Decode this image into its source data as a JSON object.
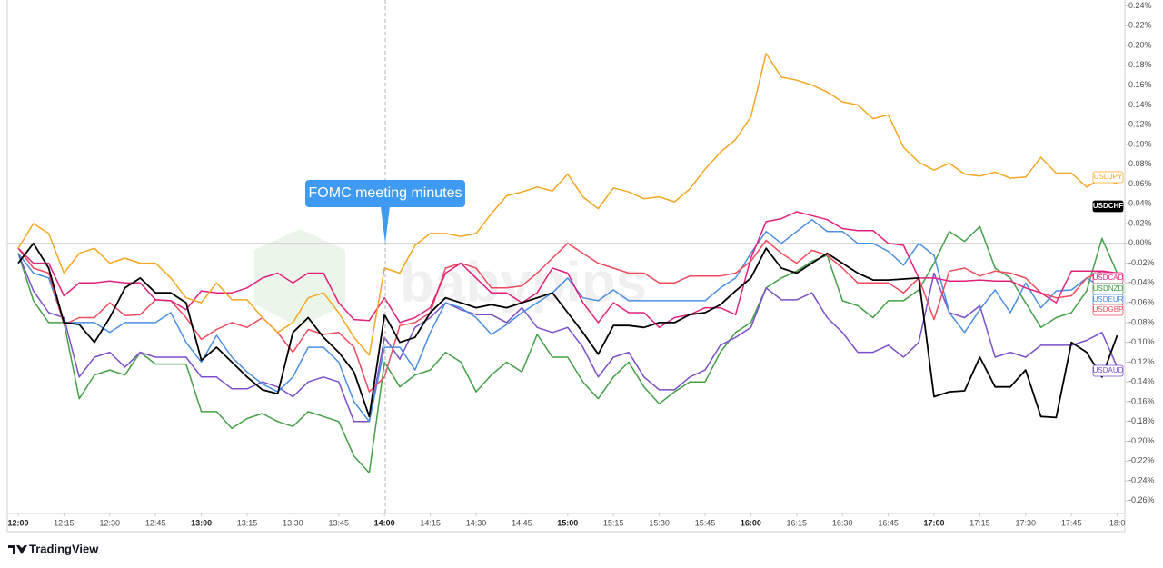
{
  "chart_data": {
    "type": "line",
    "annotation": "FOMC meeting minutes",
    "watermark": "babypips",
    "brand": "TradingView",
    "categories": [
      "12:00",
      null,
      null,
      "12:15",
      null,
      null,
      "12:30",
      null,
      null,
      "12:45",
      null,
      null,
      "13:00",
      null,
      null,
      "13:15",
      null,
      null,
      "13:30",
      null,
      null,
      "13:45",
      null,
      null,
      "14:00",
      null,
      null,
      "14:15",
      null,
      null,
      "14:30",
      null,
      null,
      "14:45",
      null,
      null,
      "15:00",
      null,
      null,
      "15:15",
      null,
      null,
      "15:30",
      null,
      null,
      "15:45",
      null,
      null,
      "16:00",
      null,
      null,
      "16:15",
      null,
      null,
      "16:30",
      null,
      null,
      "16:45",
      null,
      null,
      "17:00",
      null,
      null,
      "17:15",
      null,
      null,
      "17:30",
      null,
      null,
      "17:45",
      null,
      null,
      "18:0"
    ],
    "ylim": [
      -0.273,
      0.246
    ],
    "yticks": [
      {
        "value": 0.24,
        "label": "0.24%"
      },
      {
        "value": 0.22,
        "label": "0.22%"
      },
      {
        "value": 0.2,
        "label": "0.20%"
      },
      {
        "value": 0.18,
        "label": "0.18%"
      },
      {
        "value": 0.16,
        "label": "0.16%"
      },
      {
        "value": 0.14,
        "label": "0.14%"
      },
      {
        "value": 0.12,
        "label": "0.12%"
      },
      {
        "value": 0.1,
        "label": "0.10%"
      },
      {
        "value": 0.08,
        "label": "0.08%"
      },
      {
        "value": 0.06,
        "label": "0.06%"
      },
      {
        "value": 0.04,
        "label": "0.04%"
      },
      {
        "value": 0.02,
        "label": "0.02%"
      },
      {
        "value": 0,
        "label": "0.00%"
      },
      {
        "value": -0.02,
        "label": "-0.02%"
      },
      {
        "value": -0.04,
        "label": "-0.04%"
      },
      {
        "value": -0.06,
        "label": "-0.06%"
      },
      {
        "value": -0.08,
        "label": "-0.08%"
      },
      {
        "value": -0.1,
        "label": "-0.10%"
      },
      {
        "value": -0.12,
        "label": "-0.12%"
      },
      {
        "value": -0.14,
        "label": "-0.14%"
      },
      {
        "value": -0.16,
        "label": "-0.16%"
      },
      {
        "value": -0.18,
        "label": "-0.18%"
      },
      {
        "value": -0.2,
        "label": "-0.20%"
      },
      {
        "value": -0.22,
        "label": "-0.22%"
      },
      {
        "value": -0.24,
        "label": "-0.24%"
      },
      {
        "value": -0.26,
        "label": "-0.26%"
      }
    ],
    "grid": false,
    "series": [
      {
        "name": "USDJPY",
        "color": "#f5a623",
        "values": [
          -0.005,
          0.02,
          0.01,
          -0.03,
          -0.01,
          -0.005,
          -0.02,
          -0.015,
          -0.02,
          -0.02,
          -0.035,
          -0.055,
          -0.06,
          -0.04,
          -0.057,
          -0.057,
          -0.075,
          -0.09,
          -0.08,
          -0.055,
          -0.05,
          -0.07,
          -0.095,
          -0.113,
          -0.025,
          -0.03,
          -0.002,
          0.01,
          0.01,
          0.007,
          0.01,
          0.03,
          0.048,
          0.052,
          0.057,
          0.053,
          0.07,
          0.047,
          0.035,
          0.056,
          0.052,
          0.045,
          0.047,
          0.042,
          0.055,
          0.075,
          0.092,
          0.105,
          0.128,
          0.192,
          0.168,
          0.165,
          0.16,
          0.153,
          0.143,
          0.14,
          0.126,
          0.13,
          0.097,
          0.082,
          0.074,
          0.081,
          0.07,
          0.068,
          0.072,
          0.066,
          0.067,
          0.087,
          0.071,
          0.071,
          0.057,
          0.066,
          0.06
        ]
      },
      {
        "name": "USDCHF",
        "color": "#000000",
        "values": [
          -0.02,
          0.0,
          -0.025,
          -0.08,
          -0.082,
          -0.1,
          -0.075,
          -0.045,
          -0.035,
          -0.05,
          -0.05,
          -0.06,
          -0.118,
          -0.105,
          -0.12,
          -0.135,
          -0.148,
          -0.152,
          -0.09,
          -0.075,
          -0.095,
          -0.11,
          -0.13,
          -0.175,
          -0.072,
          -0.1,
          -0.095,
          -0.07,
          -0.055,
          -0.06,
          -0.065,
          -0.062,
          -0.065,
          -0.06,
          -0.055,
          -0.05,
          -0.07,
          -0.09,
          -0.112,
          -0.083,
          -0.083,
          -0.085,
          -0.08,
          -0.08,
          -0.072,
          -0.07,
          -0.062,
          -0.048,
          -0.035,
          -0.005,
          -0.025,
          -0.03,
          -0.02,
          -0.01,
          -0.02,
          -0.03,
          -0.037,
          -0.037,
          -0.036,
          -0.035,
          -0.155,
          -0.15,
          -0.149,
          -0.115,
          -0.145,
          -0.145,
          -0.128,
          -0.175,
          -0.176,
          -0.1,
          -0.11,
          -0.135,
          -0.093
        ]
      },
      {
        "name": "USDCAD",
        "color": "#e0217b",
        "values": [
          -0.005,
          -0.02,
          -0.02,
          -0.053,
          -0.04,
          -0.04,
          -0.038,
          -0.04,
          -0.04,
          -0.057,
          -0.058,
          -0.067,
          -0.048,
          -0.05,
          -0.05,
          -0.045,
          -0.035,
          -0.03,
          -0.04,
          -0.03,
          -0.03,
          -0.06,
          -0.077,
          -0.078,
          -0.055,
          -0.08,
          -0.075,
          -0.065,
          -0.03,
          -0.02,
          -0.035,
          -0.05,
          -0.05,
          -0.06,
          -0.05,
          -0.025,
          -0.03,
          -0.06,
          -0.08,
          -0.06,
          -0.07,
          -0.07,
          -0.085,
          -0.075,
          -0.072,
          -0.065,
          -0.065,
          -0.072,
          -0.015,
          0.022,
          0.025,
          0.032,
          0.028,
          0.024,
          0.015,
          0.013,
          0.013,
          0.0,
          -0.002,
          -0.035,
          -0.035,
          -0.038,
          -0.038,
          -0.037,
          -0.038,
          -0.038,
          -0.045,
          -0.05,
          -0.06,
          -0.028,
          -0.028,
          -0.028,
          -0.03
        ]
      },
      {
        "name": "USDNZD",
        "color": "#43a047",
        "values": [
          -0.01,
          -0.058,
          -0.08,
          -0.08,
          -0.157,
          -0.133,
          -0.128,
          -0.133,
          -0.11,
          -0.122,
          -0.122,
          -0.122,
          -0.17,
          -0.17,
          -0.187,
          -0.177,
          -0.172,
          -0.18,
          -0.185,
          -0.17,
          -0.175,
          -0.18,
          -0.215,
          -0.232,
          -0.12,
          -0.145,
          -0.133,
          -0.128,
          -0.11,
          -0.12,
          -0.15,
          -0.133,
          -0.12,
          -0.13,
          -0.092,
          -0.115,
          -0.115,
          -0.14,
          -0.157,
          -0.135,
          -0.12,
          -0.145,
          -0.162,
          -0.15,
          -0.14,
          -0.14,
          -0.11,
          -0.09,
          -0.08,
          -0.045,
          -0.035,
          -0.028,
          -0.018,
          -0.012,
          -0.058,
          -0.063,
          -0.075,
          -0.058,
          -0.058,
          -0.047,
          -0.02,
          0.012,
          0.002,
          0.017,
          -0.025,
          -0.035,
          -0.06,
          -0.085,
          -0.075,
          -0.07,
          -0.048,
          0.005,
          -0.03
        ]
      },
      {
        "name": "USDEUR",
        "color": "#4a8fe0",
        "values": [
          -0.01,
          -0.03,
          -0.035,
          -0.08,
          -0.08,
          -0.08,
          -0.09,
          -0.08,
          -0.08,
          -0.08,
          -0.07,
          -0.1,
          -0.12,
          -0.093,
          -0.115,
          -0.13,
          -0.142,
          -0.15,
          -0.135,
          -0.105,
          -0.105,
          -0.12,
          -0.16,
          -0.18,
          -0.105,
          -0.105,
          -0.128,
          -0.09,
          -0.06,
          -0.065,
          -0.075,
          -0.092,
          -0.082,
          -0.07,
          -0.06,
          -0.05,
          -0.035,
          -0.055,
          -0.058,
          -0.047,
          -0.058,
          -0.058,
          -0.058,
          -0.058,
          -0.058,
          -0.058,
          -0.045,
          -0.035,
          -0.01,
          0.012,
          0.0,
          0.012,
          0.024,
          0.012,
          0.012,
          0.0,
          0.0,
          -0.008,
          -0.022,
          0.0,
          -0.012,
          -0.07,
          -0.09,
          -0.067,
          -0.047,
          -0.07,
          -0.04,
          -0.065,
          -0.048,
          -0.047,
          -0.035,
          -0.045,
          -0.035
        ]
      },
      {
        "name": "USDGBP",
        "color": "#ef4b5e",
        "values": [
          -0.005,
          -0.025,
          -0.03,
          -0.082,
          -0.075,
          -0.075,
          -0.06,
          -0.073,
          -0.072,
          -0.057,
          -0.058,
          -0.075,
          -0.097,
          -0.087,
          -0.08,
          -0.085,
          -0.075,
          -0.09,
          -0.11,
          -0.087,
          -0.092,
          -0.09,
          -0.105,
          -0.15,
          -0.135,
          -0.083,
          -0.08,
          -0.07,
          -0.025,
          -0.02,
          -0.025,
          -0.045,
          -0.045,
          -0.043,
          -0.03,
          -0.015,
          0.0,
          -0.01,
          -0.02,
          -0.025,
          -0.03,
          -0.03,
          -0.04,
          -0.04,
          -0.033,
          -0.033,
          -0.033,
          -0.03,
          -0.018,
          0.003,
          -0.01,
          -0.02,
          -0.007,
          -0.012,
          -0.025,
          -0.04,
          -0.04,
          -0.04,
          -0.05,
          -0.035,
          -0.077,
          -0.028,
          -0.025,
          -0.033,
          -0.028,
          -0.03,
          -0.035,
          -0.05,
          -0.055,
          -0.053,
          -0.035,
          -0.028,
          -0.03
        ]
      },
      {
        "name": "USDAUD",
        "color": "#7b4fc9",
        "values": [
          -0.01,
          -0.048,
          -0.07,
          -0.075,
          -0.135,
          -0.115,
          -0.11,
          -0.125,
          -0.11,
          -0.115,
          -0.115,
          -0.115,
          -0.135,
          -0.135,
          -0.147,
          -0.147,
          -0.14,
          -0.145,
          -0.155,
          -0.14,
          -0.135,
          -0.14,
          -0.18,
          -0.18,
          -0.095,
          -0.117,
          -0.085,
          -0.075,
          -0.06,
          -0.067,
          -0.072,
          -0.072,
          -0.08,
          -0.065,
          -0.085,
          -0.09,
          -0.085,
          -0.105,
          -0.135,
          -0.115,
          -0.11,
          -0.135,
          -0.148,
          -0.148,
          -0.135,
          -0.128,
          -0.103,
          -0.095,
          -0.085,
          -0.045,
          -0.057,
          -0.057,
          -0.05,
          -0.075,
          -0.09,
          -0.11,
          -0.11,
          -0.103,
          -0.115,
          -0.1,
          -0.03,
          -0.07,
          -0.075,
          -0.063,
          -0.115,
          -0.11,
          -0.115,
          -0.103,
          -0.103,
          -0.103,
          -0.098,
          -0.09,
          -0.125
        ]
      }
    ]
  }
}
